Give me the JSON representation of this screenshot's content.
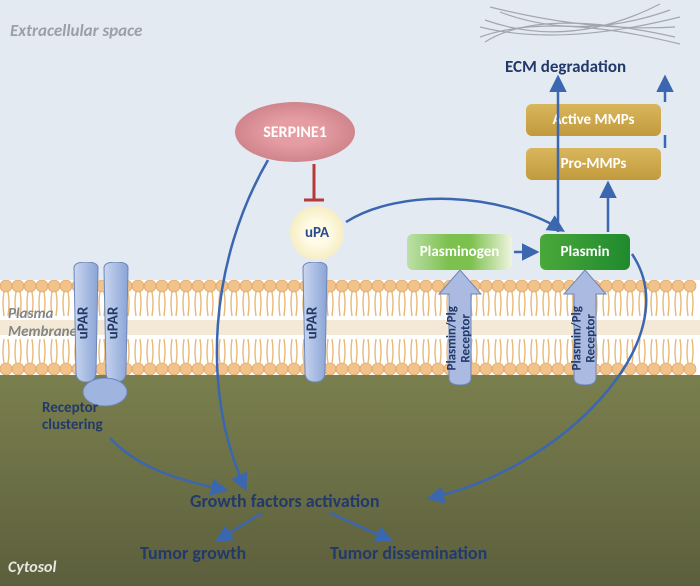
{
  "type": "pathway-diagram",
  "colors": {
    "extracellular_bg": "#e4eaf2",
    "cytosol_bg_top": "#7a7f4e",
    "cytosol_bg_bottom": "#5c5f3c",
    "membrane_head": "#f2c28b",
    "membrane_tail": "#e8d3b0",
    "arrow": "#3b66b0",
    "inhibit": "#b53a3a",
    "text_main": "#223a6a",
    "region_label": "#9a9fa8"
  },
  "regions": {
    "extracellular": "Extracellular space",
    "plasma_membrane": "Plasma\nMembrane",
    "cytosol": "Cytosol"
  },
  "nodes": {
    "serpine": "SERPINE1",
    "upa": "uPA",
    "plasminogen": "Plasminogen",
    "plasmin": "Plasmin",
    "active_mmps": "Active MMPs",
    "pro_mmps": "Pro-MMPs",
    "ecm_degradation": "ECM degradation",
    "receptor_clustering": "Receptor\nclustering",
    "growth_factors": "Growth factors activation",
    "tumor_growth": "Tumor growth",
    "tumor_dissemination": "Tumor dissemination"
  },
  "receptors": {
    "upar": "uPAR",
    "plg": "Plasmin/Plg\nReceptor"
  }
}
